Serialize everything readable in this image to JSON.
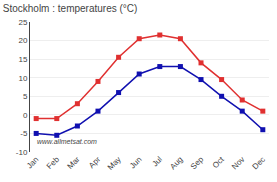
{
  "chart_data": {
    "type": "line",
    "title": "Stockholm : temperatures (°C)",
    "categories": [
      "Jan",
      "Feb",
      "Mar",
      "Apr",
      "May",
      "Jun",
      "Jul",
      "Aug",
      "Sep",
      "Oct",
      "Nov",
      "Dec"
    ],
    "series": [
      {
        "color": "#e03030",
        "values": [
          -1,
          -1,
          3,
          9,
          15.5,
          20.5,
          21.5,
          20.5,
          14,
          9.5,
          4,
          1
        ]
      },
      {
        "color": "#1010b0",
        "values": [
          -5,
          -5.5,
          -3,
          1,
          6,
          11,
          13,
          13,
          9.5,
          5,
          1,
          -4
        ]
      }
    ],
    "marker": "square",
    "ylim": [
      -10,
      25
    ],
    "yticks": [
      -10,
      -5,
      0,
      5,
      10,
      15,
      20,
      25
    ],
    "grid": true,
    "annotations": [
      {
        "text": "www.allmetsat.com"
      }
    ]
  }
}
